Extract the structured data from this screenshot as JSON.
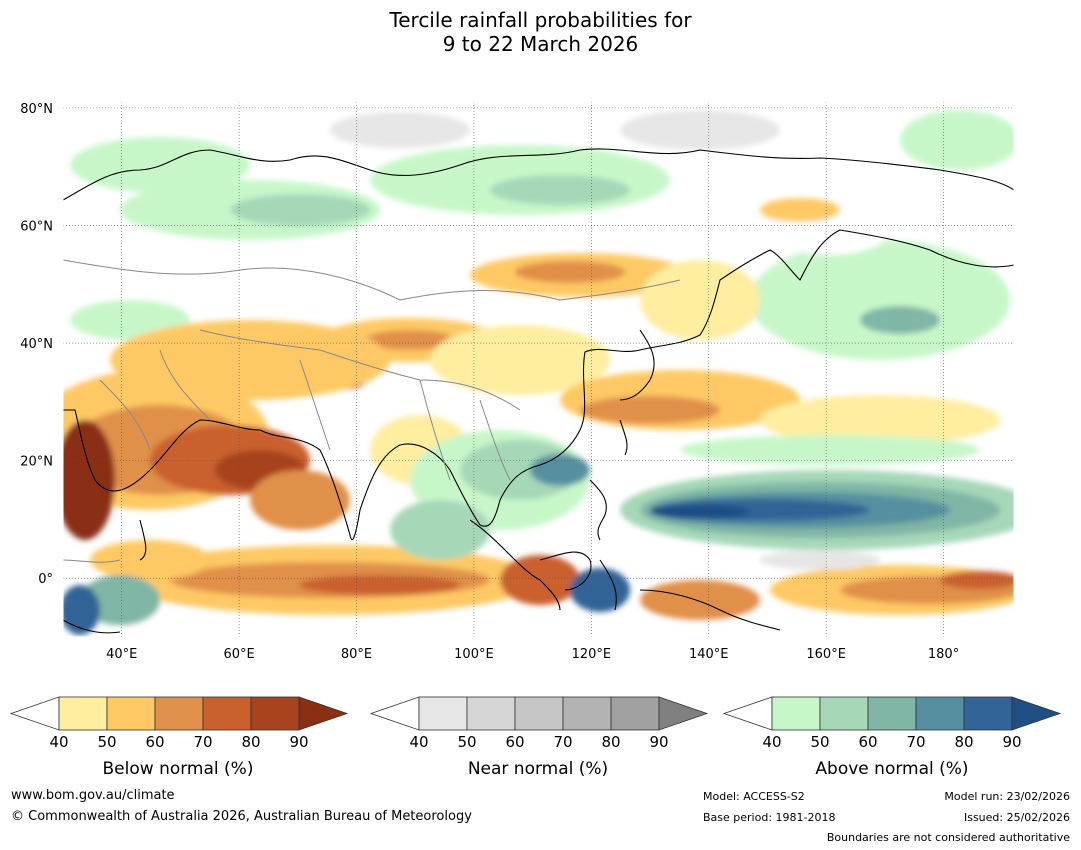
{
  "title": {
    "line1": "Tercile rainfall probabilities for",
    "line2": "9 to 22 March 2026"
  },
  "map": {
    "lat_labels": [
      "80°N",
      "60°N",
      "40°N",
      "20°N",
      "0°"
    ],
    "lon_labels": [
      "40°E",
      "60°E",
      "80°E",
      "100°E",
      "120°E",
      "140°E",
      "160°E",
      "180°"
    ],
    "extent": {
      "lon": [
        30,
        192
      ],
      "lat": [
        -10,
        81
      ]
    }
  },
  "legends": {
    "below": {
      "label": "Below normal (%)",
      "ticks": [
        "40",
        "50",
        "60",
        "70",
        "80",
        "90"
      ],
      "colors": [
        "#ffffff",
        "#ffeda0",
        "#fec965",
        "#e0904a",
        "#c9602e",
        "#a8431f",
        "#8a2e14"
      ]
    },
    "near": {
      "label": "Near normal (%)",
      "ticks": [
        "40",
        "50",
        "60",
        "70",
        "80",
        "90"
      ],
      "colors": [
        "#ffffff",
        "#e6e6e6",
        "#d6d6d6",
        "#c6c6c6",
        "#b3b3b3",
        "#a0a0a0",
        "#808080"
      ]
    },
    "above": {
      "label": "Above normal (%)",
      "ticks": [
        "40",
        "50",
        "60",
        "70",
        "80",
        "90"
      ],
      "colors": [
        "#ffffff",
        "#c7f7c9",
        "#a6d8b8",
        "#80b6a6",
        "#5690a0",
        "#326497",
        "#1f4e85"
      ]
    }
  },
  "footer": {
    "website": "www.bom.gov.au/climate",
    "copyright": "© Commonwealth of Australia 2026, Australian Bureau of Meteorology",
    "model": "Model: ACCESS-S2",
    "base_period": "Base period: 1981-2018",
    "model_run": "Model run: 23/02/2026",
    "issued": "Issued: 25/02/2026",
    "disclaimer": "Boundaries are not considered authoritative"
  }
}
